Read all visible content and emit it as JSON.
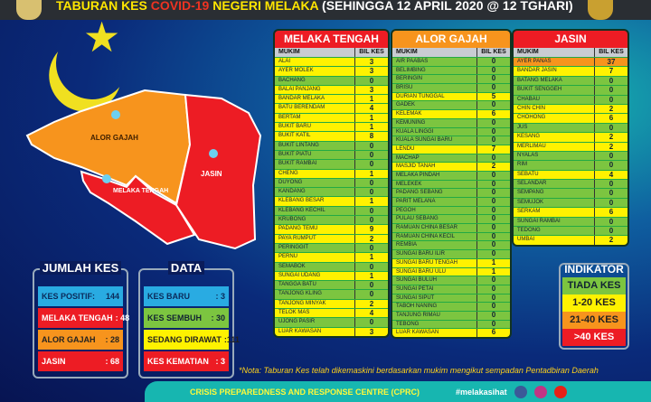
{
  "header": {
    "title_a": "TABURAN KES ",
    "title_b": "COVID-19",
    "title_c": " NEGERI MELAKA ",
    "title_d": "(SEHINGGA 12 APRIL 2020 @ 12 TGHARI)"
  },
  "map": {
    "labels": [
      "ALOR GAJAH",
      "MELAKA TENGAH",
      "JASIN"
    ]
  },
  "colors": {
    "zero": "#7cc540",
    "low": "#fff200",
    "mid": "#f7941d",
    "high": "#ed1c24"
  },
  "col_headers": {
    "mukim": "MUKIM",
    "bil": "BIL KES"
  },
  "tables": [
    {
      "title": "MELAKA TENGAH",
      "color": "#ed1c24",
      "rows": [
        [
          "ALAI",
          3
        ],
        [
          "AYER MOLEK",
          3
        ],
        [
          "BACHANG",
          0
        ],
        [
          "BALAI PANJANG",
          3
        ],
        [
          "BANDAR MELAKA",
          1
        ],
        [
          "BATU BERENDAM",
          4
        ],
        [
          "BERTAM",
          1
        ],
        [
          "BUKIT BARU",
          1
        ],
        [
          "BUKIT KATIL",
          8
        ],
        [
          "BUKIT LINTANG",
          0
        ],
        [
          "BUKIT PIATU",
          0
        ],
        [
          "BUKIT RAMBAI",
          0
        ],
        [
          "CHENG",
          1
        ],
        [
          "DUYONG",
          0
        ],
        [
          "KANDANG",
          0
        ],
        [
          "KLEBANG BESAR",
          1
        ],
        [
          "KLEBANG KECHIL",
          0
        ],
        [
          "KRUBONG",
          0
        ],
        [
          "PADANG TEMU",
          9
        ],
        [
          "PAYA RUMPUT",
          2
        ],
        [
          "PERINGGIT",
          0
        ],
        [
          "PERNU",
          1
        ],
        [
          "SEMABOK",
          0
        ],
        [
          "SUNGAI UDANG",
          1
        ],
        [
          "TANGGA BATU",
          0
        ],
        [
          "TANJONG KLING",
          0
        ],
        [
          "TANJONG MINYAK",
          2
        ],
        [
          "TELOK MAS",
          4
        ],
        [
          "UJONG PASIR",
          0
        ],
        [
          "LUAR KAWASAN",
          3
        ]
      ]
    },
    {
      "title": "ALOR GAJAH",
      "color": "#f7941d",
      "rows": [
        [
          "AIR PAABAS",
          0
        ],
        [
          "BELIMBING",
          0
        ],
        [
          "BERINGIN",
          0
        ],
        [
          "BRISU",
          0
        ],
        [
          "DURIAN TUNGGAL",
          5
        ],
        [
          "GADEK",
          0
        ],
        [
          "KELEMAK",
          6
        ],
        [
          "KEMUNING",
          0
        ],
        [
          "KUALA LINGGI",
          0
        ],
        [
          "KUALA SUNGAI BARU",
          0
        ],
        [
          "LENDU",
          7
        ],
        [
          "MACHAP",
          0
        ],
        [
          "MASJID TANAH",
          2
        ],
        [
          "MELAKA PINDAH",
          0
        ],
        [
          "MELEKEK",
          0
        ],
        [
          "PADANG SEBANG",
          0
        ],
        [
          "PARIT MELANA",
          0
        ],
        [
          "PEGOH",
          0
        ],
        [
          "PULAU SEBANG",
          0
        ],
        [
          "RAMUAN CHINA BESAR",
          0
        ],
        [
          "RAMUAN CHINA KECIL",
          0
        ],
        [
          "REMBIA",
          0
        ],
        [
          "SUNGAI BARU ILIR",
          0
        ],
        [
          "SUNGAI BARU TENGAH",
          1
        ],
        [
          "SUNGAI BARU ULU",
          1
        ],
        [
          "SUNGAI BULUH",
          0
        ],
        [
          "SUNGAI PETAI",
          0
        ],
        [
          "SUNGAI SIPUT",
          0
        ],
        [
          "TABOH NANING",
          0
        ],
        [
          "TANJUNG RIMAU",
          0
        ],
        [
          "TEBONG",
          0
        ],
        [
          "LUAR KAWASAN",
          6
        ]
      ]
    },
    {
      "title": "JASIN",
      "color": "#ed1c24",
      "rows": [
        [
          "AYER PANAS",
          37
        ],
        [
          "BANDAR JASIN",
          7
        ],
        [
          "BATANG MELAKA",
          0
        ],
        [
          "BUKIT SENGGEH",
          0
        ],
        [
          "CHABAU",
          0
        ],
        [
          "CHIN CHIN",
          2
        ],
        [
          "CHOHONG",
          6
        ],
        [
          "JUS",
          0
        ],
        [
          "KESANG",
          2
        ],
        [
          "MERLIMAU",
          2
        ],
        [
          "NYALAS",
          0
        ],
        [
          "RIM",
          0
        ],
        [
          "SEBATU",
          4
        ],
        [
          "SELANDAR",
          0
        ],
        [
          "SEMPANG",
          0
        ],
        [
          "SEMUJOK",
          0
        ],
        [
          "SERKAM",
          6
        ],
        [
          "SUNGAI RAMBAI",
          0
        ],
        [
          "TEDONG",
          0
        ],
        [
          "UMBAI",
          2
        ]
      ]
    }
  ],
  "jumlah": {
    "title": "JUMLAH KES",
    "items": [
      {
        "label": "KES POSITIF:",
        "value": "144",
        "bg": "#29abe2",
        "fg": "#0b2a5a"
      },
      {
        "label": "MELAKA TENGAH",
        "value": ": 48",
        "bg": "#ed1c24",
        "fg": "#fff"
      },
      {
        "label": "ALOR GAJAH",
        "value": ": 28",
        "bg": "#f7941d",
        "fg": "#222"
      },
      {
        "label": "JASIN",
        "value": ": 68",
        "bg": "#ed1c24",
        "fg": "#fff"
      }
    ]
  },
  "data": {
    "title": "DATA",
    "items": [
      {
        "label": "KES BARU",
        "value": ": 3",
        "bg": "#29abe2",
        "fg": "#0b2a5a"
      },
      {
        "label": "KES SEMBUH",
        "value": ": 30",
        "bg": "#7cc540",
        "fg": "#123"
      },
      {
        "label": "SEDANG DIRAWAT",
        "value": ":111",
        "bg": "#fff200",
        "fg": "#222"
      },
      {
        "label": "KES KEMATIAN",
        "value": ": 3",
        "bg": "#ed1c24",
        "fg": "#fff"
      }
    ]
  },
  "indikator": {
    "title": "INDIKATOR",
    "items": [
      {
        "label": "TIADA KES",
        "bg": "#7cc540",
        "fg": "#123"
      },
      {
        "label": "1-20 KES",
        "bg": "#fff200",
        "fg": "#222"
      },
      {
        "label": "21-40 KES",
        "bg": "#f7941d",
        "fg": "#222"
      },
      {
        "label": ">40 KES",
        "bg": "#ed1c24",
        "fg": "#fff"
      }
    ]
  },
  "note": "*Nota: Taburan Kes telah dikemaskini berdasarkan mukim mengikut sempadan Pentadbiran Daerah",
  "footer": {
    "centre": "CRISIS PREPAREDNESS AND RESPONSE CENTRE (CPRC)",
    "hashtag": "#melakasihat"
  }
}
